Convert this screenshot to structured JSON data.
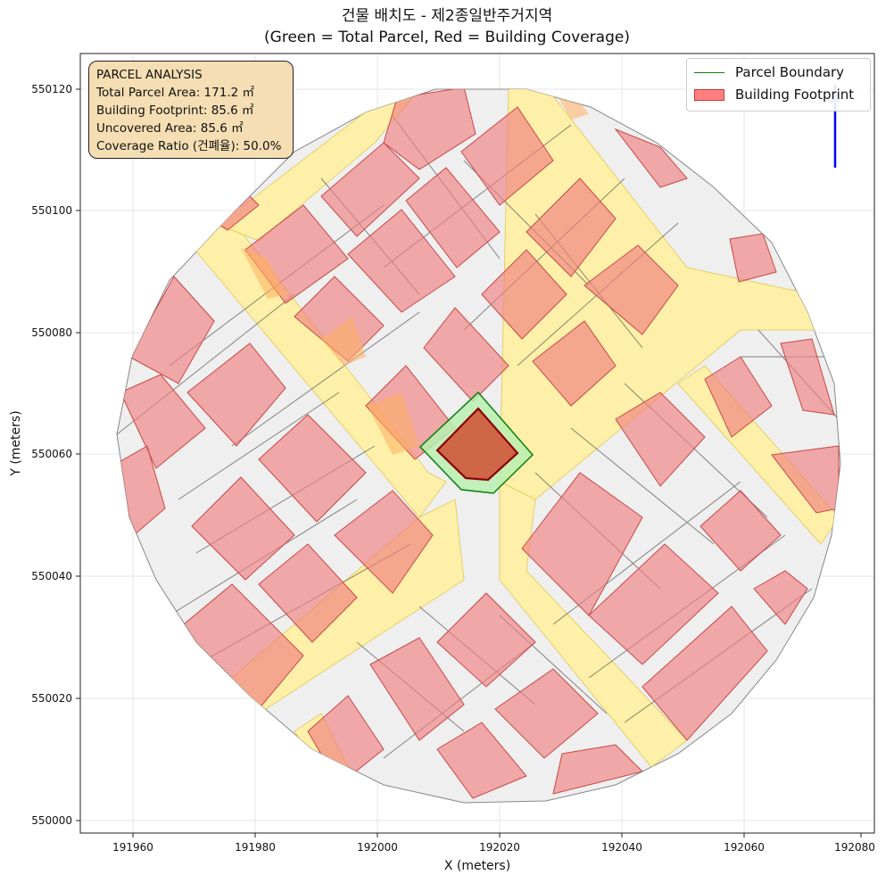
{
  "title": {
    "line1": "건물 배치도 - 제2종일반주거지역",
    "line2": "(Green = Total Parcel, Red = Building Coverage)"
  },
  "info_box": {
    "heading": "PARCEL ANALYSIS",
    "lines": [
      "Total Parcel Area: 171.2 ㎡",
      "Building Footprint: 85.6 ㎡",
      "Uncovered Area: 85.6 ㎡",
      "Coverage Ratio (건폐율): 50.0%"
    ]
  },
  "legend": {
    "items": [
      {
        "label": "Parcel Boundary",
        "color": "#0b7d0b"
      },
      {
        "label": "Building Footprint",
        "color": "#ff4040"
      }
    ],
    "placement": "top-right"
  },
  "axes": {
    "xlabel": "X (meters)",
    "ylabel": "Y (meters)",
    "xticks": [
      "191960",
      "191980",
      "192000",
      "192020",
      "192040",
      "192060",
      "192080"
    ],
    "yticks": [
      "550000",
      "550020",
      "550040",
      "550060",
      "550080",
      "550100",
      "550120"
    ],
    "xlim": [
      191951,
      192082
    ],
    "ylim": [
      549998,
      550126
    ],
    "grid": true
  },
  "colors": {
    "road": "#fff0a0",
    "block": "#efefef",
    "building": "#f08080",
    "parcel_fill": "#b8f0b0",
    "parcel_edge": "#0b7d0b",
    "footprint": "#d2442c",
    "north_arrow": "#0000ff",
    "infobox_bg": "#f5deb3"
  }
}
